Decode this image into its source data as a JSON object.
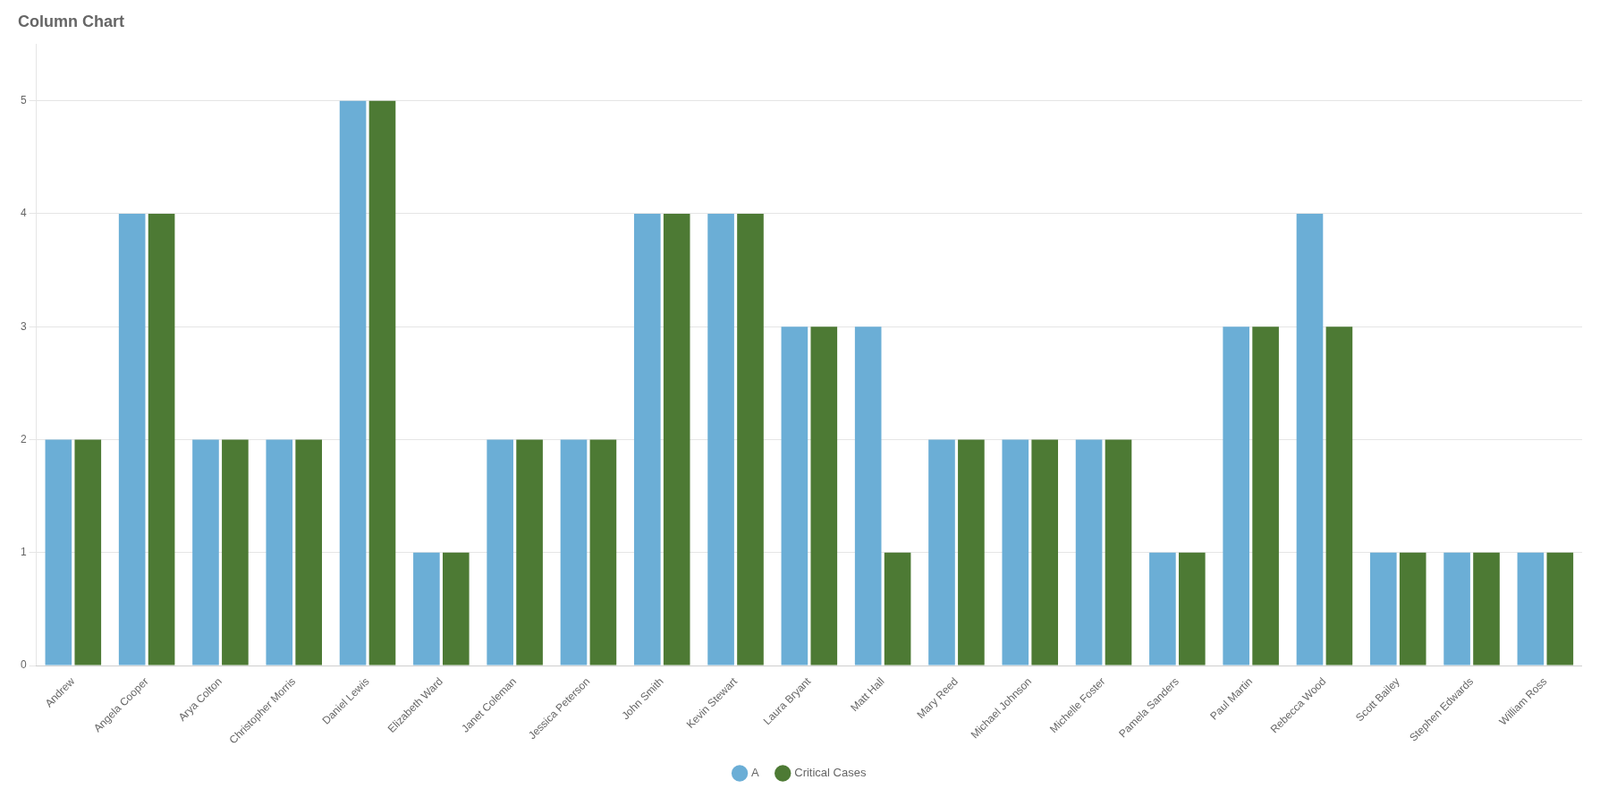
{
  "chart_data": {
    "type": "bar",
    "title": "Column Chart",
    "categories": [
      "Andrew",
      "Angela Cooper",
      "Arya Colton",
      "Christopher Morris",
      "Daniel Lewis",
      "Elizabeth Ward",
      "Janet Coleman",
      "Jessica Peterson",
      "John Smith",
      "Kevin Stewart",
      "Laura Bryant",
      "Matt Hall",
      "Mary Reed",
      "Michael Johnson",
      "Michelle Foster",
      "Pamela Sanders",
      "Paul Martin",
      "Rebecca Wood",
      "Scott Bailey",
      "Stephen Edwards",
      "William Ross"
    ],
    "series": [
      {
        "name": "A",
        "color": "#6baed6",
        "values": [
          2,
          4,
          2,
          2,
          5,
          1,
          2,
          2,
          4,
          4,
          3,
          3,
          2,
          2,
          2,
          1,
          3,
          4,
          1,
          1,
          1
        ]
      },
      {
        "name": "Critical Cases",
        "color": "#4d7a34",
        "values": [
          2,
          4,
          2,
          2,
          5,
          1,
          2,
          2,
          4,
          4,
          3,
          1,
          2,
          2,
          2,
          1,
          3,
          3,
          1,
          1,
          1
        ]
      }
    ],
    "ylim": [
      0,
      5.5
    ],
    "yticks": [
      0,
      1,
      2,
      3,
      4,
      5
    ],
    "grid": true,
    "legend": "bottom"
  }
}
